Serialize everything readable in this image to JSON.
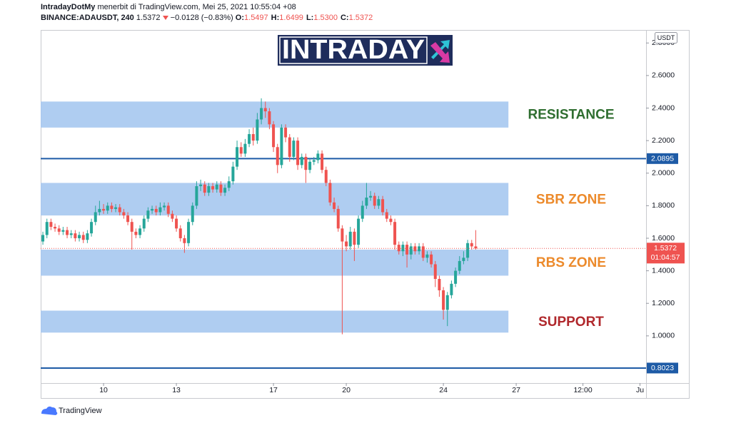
{
  "header": {
    "author": "IntradayDotMy",
    "published": "menerbit di TradingView.com, Mei 25, 2021 10:55:04 +08",
    "symbol": "BINANCE:ADAUSDT, 240",
    "change": "−0.0128 (−0.83%)",
    "ohlc": [
      {
        "label": "O:",
        "value": "1.5497"
      },
      {
        "label": "H:",
        "value": "1.6499"
      },
      {
        "label": "L:",
        "value": "1.5300"
      },
      {
        "label": "C:",
        "value": "1.5372"
      }
    ]
  },
  "logo": "INTRADAY",
  "footer": "TradingView",
  "chart_data": {
    "type": "candlestick",
    "currency": "USDT",
    "countdown": "01:04:57",
    "up_color": "#26a69a",
    "down_color": "#ef5350",
    "grid": false,
    "xlim": [
      7.41,
      32.35
    ],
    "xticks": [
      10,
      13,
      17,
      20,
      24,
      27,
      {
        "value": 29.75,
        "label": "12:00"
      },
      {
        "value": 32.1,
        "label": "Ju"
      }
    ],
    "ylim": [
      0.71,
      2.88
    ],
    "yticks": [
      {
        "value": 2.8,
        "label": "2.8000"
      },
      {
        "value": 2.6,
        "label": "2.6000"
      },
      {
        "value": 2.4,
        "label": "2.4000"
      },
      {
        "value": 2.2,
        "label": "2.2000"
      },
      {
        "value": 2.0,
        "label": "2.0000"
      },
      {
        "value": 1.8,
        "label": "1.8000"
      },
      {
        "value": 1.6,
        "label": "1.6000"
      },
      {
        "value": 1.4,
        "label": "1.4000"
      },
      {
        "value": 1.2,
        "label": "1.2000"
      },
      {
        "value": 1.0,
        "label": "1.0000"
      }
    ],
    "hlines": [
      2.0895,
      0.8023
    ],
    "hline_color": "#1e5ba6",
    "zone_fill": "#a6c8ef",
    "zone_end": 26.68,
    "zones": [
      {
        "name": "RESISTANCE",
        "low": 2.28,
        "high": 2.44,
        "color": "#2f6e30"
      },
      {
        "name": "SBR ZONE",
        "low": 1.74,
        "high": 1.94,
        "color": "#ec8a2b"
      },
      {
        "name": "RBS ZONE",
        "low": 1.37,
        "high": 1.53,
        "color": "#ec8a2b"
      },
      {
        "name": "SUPPORT",
        "low": 1.02,
        "high": 1.155,
        "color": "#b0282c"
      }
    ],
    "x": [
      7.5,
      7.667,
      7.833,
      8,
      8.167,
      8.333,
      8.5,
      8.667,
      8.833,
      9,
      9.167,
      9.333,
      9.5,
      9.667,
      9.833,
      10,
      10.167,
      10.333,
      10.5,
      10.667,
      10.833,
      11,
      11.167,
      11.333,
      11.5,
      11.667,
      11.833,
      12,
      12.167,
      12.333,
      12.5,
      12.667,
      12.833,
      13,
      13.167,
      13.333,
      13.5,
      13.667,
      13.833,
      14,
      14.167,
      14.333,
      14.5,
      14.667,
      14.833,
      15,
      15.167,
      15.333,
      15.5,
      15.667,
      15.833,
      16,
      16.167,
      16.333,
      16.5,
      16.667,
      16.833,
      17,
      17.167,
      17.333,
      17.5,
      17.667,
      17.833,
      18,
      18.167,
      18.333,
      18.5,
      18.667,
      18.833,
      19,
      19.167,
      19.333,
      19.5,
      19.667,
      19.833,
      20,
      20.167,
      20.333,
      20.5,
      20.667,
      20.833,
      21,
      21.167,
      21.333,
      21.5,
      21.667,
      21.833,
      22,
      22.167,
      22.333,
      22.5,
      22.667,
      22.833,
      23,
      23.167,
      23.333,
      23.5,
      23.667,
      23.833,
      24,
      24.167,
      24.333,
      24.5,
      24.667,
      24.833,
      25,
      25.167,
      25.333
    ],
    "open": [
      1.58,
      1.62,
      1.7,
      1.67,
      1.66,
      1.64,
      1.65,
      1.62,
      1.63,
      1.6,
      1.62,
      1.59,
      1.63,
      1.7,
      1.76,
      1.78,
      1.77,
      1.8,
      1.78,
      1.79,
      1.76,
      1.74,
      1.7,
      1.64,
      1.62,
      1.66,
      1.72,
      1.77,
      1.78,
      1.76,
      1.79,
      1.8,
      1.75,
      1.72,
      1.66,
      1.6,
      1.57,
      1.7,
      1.8,
      1.92,
      1.93,
      1.88,
      1.92,
      1.9,
      1.93,
      1.88,
      1.91,
      1.95,
      2.04,
      2.16,
      2.12,
      2.18,
      2.24,
      2.2,
      2.33,
      2.4,
      2.38,
      2.3,
      2.16,
      2.05,
      2.28,
      2.22,
      2.1,
      2.2,
      2.05,
      2.1,
      2.02,
      2.07,
      2.08,
      2.12,
      2.02,
      1.94,
      1.82,
      1.78,
      1.66,
      1.58,
      1.55,
      1.64,
      1.56,
      1.72,
      1.8,
      1.85,
      1.86,
      1.8,
      1.84,
      1.76,
      1.72,
      1.7,
      1.56,
      1.52,
      1.56,
      1.5,
      1.55,
      1.52,
      1.55,
      1.48,
      1.5,
      1.44,
      1.35,
      1.28,
      1.16,
      1.25,
      1.32,
      1.4,
      1.46,
      1.48,
      1.57,
      1.5497
    ],
    "high": [
      1.64,
      1.72,
      1.72,
      1.69,
      1.68,
      1.67,
      1.67,
      1.65,
      1.65,
      1.64,
      1.64,
      1.65,
      1.72,
      1.8,
      1.83,
      1.81,
      1.82,
      1.82,
      1.81,
      1.81,
      1.78,
      1.76,
      1.72,
      1.66,
      1.68,
      1.74,
      1.79,
      1.8,
      1.8,
      1.82,
      1.82,
      1.82,
      1.77,
      1.74,
      1.68,
      1.62,
      1.72,
      1.82,
      1.95,
      1.96,
      1.95,
      1.94,
      1.94,
      1.95,
      1.95,
      1.93,
      1.98,
      2.07,
      2.2,
      2.19,
      2.21,
      2.27,
      2.28,
      2.37,
      2.46,
      2.44,
      2.4,
      2.32,
      2.18,
      2.3,
      2.3,
      2.24,
      2.22,
      2.22,
      2.12,
      2.12,
      2.09,
      2.1,
      2.14,
      2.14,
      2.04,
      1.96,
      1.85,
      1.8,
      1.68,
      1.62,
      1.67,
      1.66,
      1.74,
      1.83,
      1.94,
      1.89,
      1.88,
      1.86,
      1.86,
      1.78,
      1.74,
      1.72,
      1.58,
      1.58,
      1.58,
      1.57,
      1.57,
      1.57,
      1.57,
      1.52,
      1.52,
      1.46,
      1.37,
      1.3,
      1.27,
      1.34,
      1.42,
      1.49,
      1.52,
      1.59,
      1.59,
      1.6499
    ],
    "low": [
      1.56,
      1.6,
      1.65,
      1.64,
      1.62,
      1.62,
      1.6,
      1.6,
      1.58,
      1.58,
      1.57,
      1.57,
      1.61,
      1.68,
      1.74,
      1.75,
      1.75,
      1.76,
      1.76,
      1.74,
      1.72,
      1.68,
      1.53,
      1.6,
      1.6,
      1.64,
      1.7,
      1.75,
      1.74,
      1.74,
      1.77,
      1.73,
      1.7,
      1.64,
      1.58,
      1.51,
      1.55,
      1.68,
      1.78,
      1.89,
      1.86,
      1.86,
      1.88,
      1.88,
      1.86,
      1.86,
      1.89,
      1.93,
      2.02,
      2.1,
      2.1,
      2.16,
      2.17,
      2.18,
      2.3,
      2.34,
      2.27,
      2.13,
      2.0,
      2.03,
      2.19,
      2.07,
      2.08,
      2.02,
      2.03,
      1.94,
      2.0,
      2.05,
      2.06,
      2.0,
      1.92,
      1.8,
      1.76,
      1.64,
      1.01,
      1.52,
      1.53,
      1.46,
      1.54,
      1.7,
      1.78,
      1.83,
      1.78,
      1.78,
      1.74,
      1.7,
      1.68,
      1.53,
      1.5,
      1.49,
      1.42,
      1.47,
      1.5,
      1.5,
      1.46,
      1.45,
      1.42,
      1.3,
      1.24,
      1.1,
      1.06,
      1.23,
      1.3,
      1.38,
      1.44,
      1.46,
      1.53,
      1.53
    ],
    "close": [
      1.62,
      1.7,
      1.67,
      1.66,
      1.64,
      1.65,
      1.62,
      1.63,
      1.6,
      1.62,
      1.59,
      1.63,
      1.7,
      1.76,
      1.78,
      1.77,
      1.8,
      1.78,
      1.79,
      1.76,
      1.74,
      1.7,
      1.64,
      1.62,
      1.66,
      1.72,
      1.77,
      1.78,
      1.76,
      1.79,
      1.8,
      1.75,
      1.72,
      1.66,
      1.6,
      1.57,
      1.7,
      1.8,
      1.92,
      1.93,
      1.88,
      1.92,
      1.9,
      1.93,
      1.88,
      1.91,
      1.95,
      2.04,
      2.16,
      2.12,
      2.18,
      2.24,
      2.2,
      2.33,
      2.4,
      2.38,
      2.3,
      2.16,
      2.05,
      2.28,
      2.22,
      2.1,
      2.2,
      2.05,
      2.1,
      2.02,
      2.07,
      2.08,
      2.12,
      2.02,
      1.94,
      1.82,
      1.78,
      1.66,
      1.58,
      1.55,
      1.64,
      1.56,
      1.72,
      1.8,
      1.85,
      1.86,
      1.8,
      1.84,
      1.76,
      1.72,
      1.7,
      1.56,
      1.52,
      1.56,
      1.5,
      1.55,
      1.52,
      1.55,
      1.48,
      1.5,
      1.44,
      1.35,
      1.28,
      1.16,
      1.25,
      1.32,
      1.4,
      1.46,
      1.48,
      1.57,
      1.55,
      1.5372
    ]
  }
}
